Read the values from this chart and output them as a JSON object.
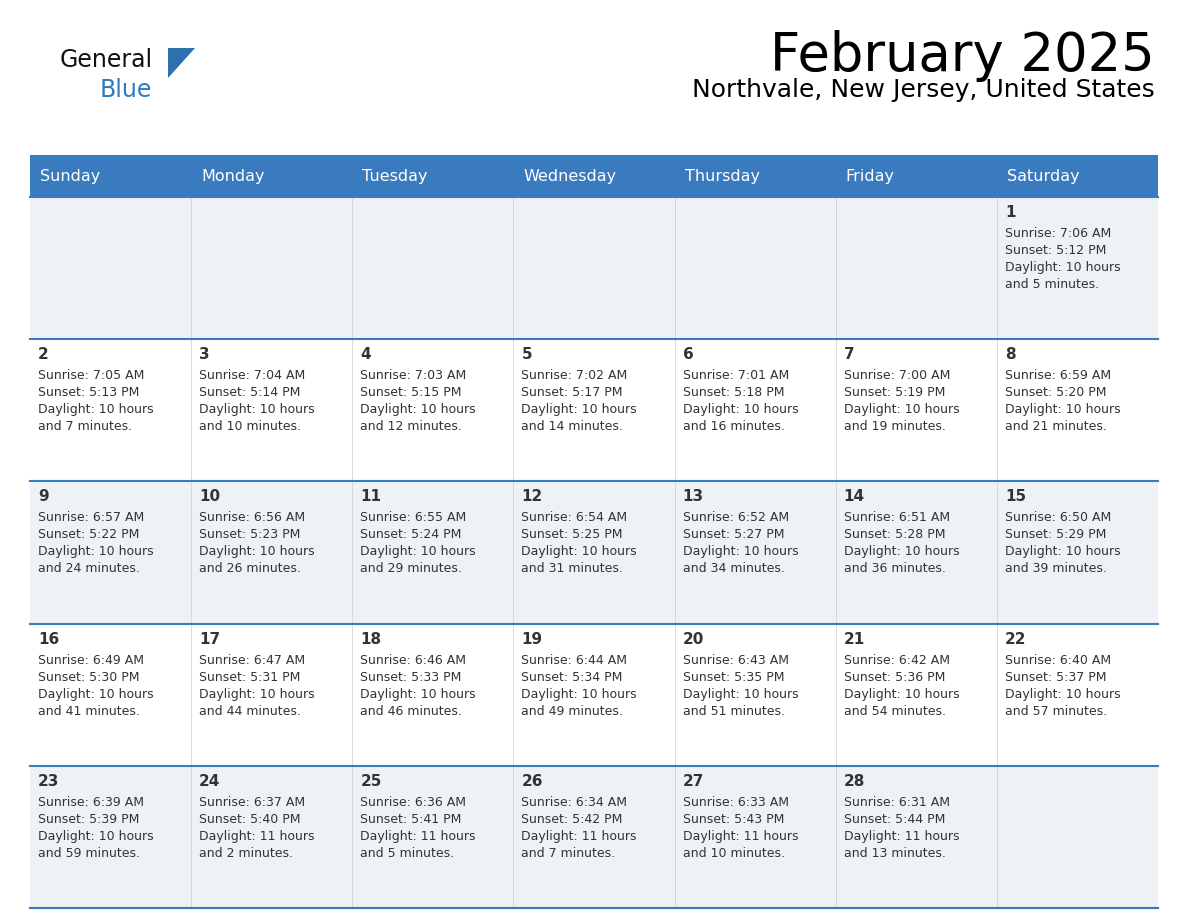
{
  "title": "February 2025",
  "subtitle": "Northvale, New Jersey, United States",
  "header_bg": "#3a7abf",
  "header_text": "#ffffff",
  "row_bg_light": "#eef2f7",
  "row_bg_white": "#ffffff",
  "border_color": "#3a7abf",
  "text_color": "#333333",
  "day_headers": [
    "Sunday",
    "Monday",
    "Tuesday",
    "Wednesday",
    "Thursday",
    "Friday",
    "Saturday"
  ],
  "calendar_data": [
    [
      null,
      null,
      null,
      null,
      null,
      null,
      {
        "day": 1,
        "sunrise": "7:06 AM",
        "sunset": "5:12 PM",
        "daylight": "10 hours",
        "daylight2": "and 5 minutes."
      }
    ],
    [
      {
        "day": 2,
        "sunrise": "7:05 AM",
        "sunset": "5:13 PM",
        "daylight": "10 hours",
        "daylight2": "and 7 minutes."
      },
      {
        "day": 3,
        "sunrise": "7:04 AM",
        "sunset": "5:14 PM",
        "daylight": "10 hours",
        "daylight2": "and 10 minutes."
      },
      {
        "day": 4,
        "sunrise": "7:03 AM",
        "sunset": "5:15 PM",
        "daylight": "10 hours",
        "daylight2": "and 12 minutes."
      },
      {
        "day": 5,
        "sunrise": "7:02 AM",
        "sunset": "5:17 PM",
        "daylight": "10 hours",
        "daylight2": "and 14 minutes."
      },
      {
        "day": 6,
        "sunrise": "7:01 AM",
        "sunset": "5:18 PM",
        "daylight": "10 hours",
        "daylight2": "and 16 minutes."
      },
      {
        "day": 7,
        "sunrise": "7:00 AM",
        "sunset": "5:19 PM",
        "daylight": "10 hours",
        "daylight2": "and 19 minutes."
      },
      {
        "day": 8,
        "sunrise": "6:59 AM",
        "sunset": "5:20 PM",
        "daylight": "10 hours",
        "daylight2": "and 21 minutes."
      }
    ],
    [
      {
        "day": 9,
        "sunrise": "6:57 AM",
        "sunset": "5:22 PM",
        "daylight": "10 hours",
        "daylight2": "and 24 minutes."
      },
      {
        "day": 10,
        "sunrise": "6:56 AM",
        "sunset": "5:23 PM",
        "daylight": "10 hours",
        "daylight2": "and 26 minutes."
      },
      {
        "day": 11,
        "sunrise": "6:55 AM",
        "sunset": "5:24 PM",
        "daylight": "10 hours",
        "daylight2": "and 29 minutes."
      },
      {
        "day": 12,
        "sunrise": "6:54 AM",
        "sunset": "5:25 PM",
        "daylight": "10 hours",
        "daylight2": "and 31 minutes."
      },
      {
        "day": 13,
        "sunrise": "6:52 AM",
        "sunset": "5:27 PM",
        "daylight": "10 hours",
        "daylight2": "and 34 minutes."
      },
      {
        "day": 14,
        "sunrise": "6:51 AM",
        "sunset": "5:28 PM",
        "daylight": "10 hours",
        "daylight2": "and 36 minutes."
      },
      {
        "day": 15,
        "sunrise": "6:50 AM",
        "sunset": "5:29 PM",
        "daylight": "10 hours",
        "daylight2": "and 39 minutes."
      }
    ],
    [
      {
        "day": 16,
        "sunrise": "6:49 AM",
        "sunset": "5:30 PM",
        "daylight": "10 hours",
        "daylight2": "and 41 minutes."
      },
      {
        "day": 17,
        "sunrise": "6:47 AM",
        "sunset": "5:31 PM",
        "daylight": "10 hours",
        "daylight2": "and 44 minutes."
      },
      {
        "day": 18,
        "sunrise": "6:46 AM",
        "sunset": "5:33 PM",
        "daylight": "10 hours",
        "daylight2": "and 46 minutes."
      },
      {
        "day": 19,
        "sunrise": "6:44 AM",
        "sunset": "5:34 PM",
        "daylight": "10 hours",
        "daylight2": "and 49 minutes."
      },
      {
        "day": 20,
        "sunrise": "6:43 AM",
        "sunset": "5:35 PM",
        "daylight": "10 hours",
        "daylight2": "and 51 minutes."
      },
      {
        "day": 21,
        "sunrise": "6:42 AM",
        "sunset": "5:36 PM",
        "daylight": "10 hours",
        "daylight2": "and 54 minutes."
      },
      {
        "day": 22,
        "sunrise": "6:40 AM",
        "sunset": "5:37 PM",
        "daylight": "10 hours",
        "daylight2": "and 57 minutes."
      }
    ],
    [
      {
        "day": 23,
        "sunrise": "6:39 AM",
        "sunset": "5:39 PM",
        "daylight": "10 hours",
        "daylight2": "and 59 minutes."
      },
      {
        "day": 24,
        "sunrise": "6:37 AM",
        "sunset": "5:40 PM",
        "daylight": "11 hours",
        "daylight2": "and 2 minutes."
      },
      {
        "day": 25,
        "sunrise": "6:36 AM",
        "sunset": "5:41 PM",
        "daylight": "11 hours",
        "daylight2": "and 5 minutes."
      },
      {
        "day": 26,
        "sunrise": "6:34 AM",
        "sunset": "5:42 PM",
        "daylight": "11 hours",
        "daylight2": "and 7 minutes."
      },
      {
        "day": 27,
        "sunrise": "6:33 AM",
        "sunset": "5:43 PM",
        "daylight": "11 hours",
        "daylight2": "and 10 minutes."
      },
      {
        "day": 28,
        "sunrise": "6:31 AM",
        "sunset": "5:44 PM",
        "daylight": "11 hours",
        "daylight2": "and 13 minutes."
      },
      null
    ]
  ]
}
